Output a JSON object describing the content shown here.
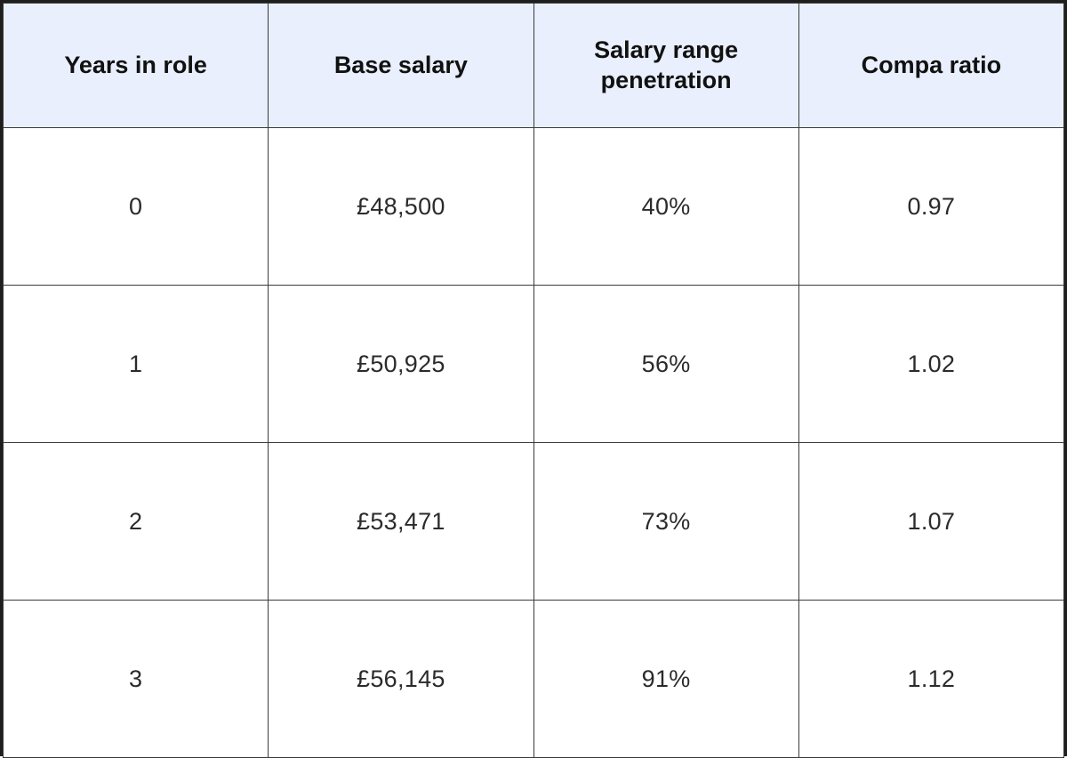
{
  "colors": {
    "header_bg": "#e9effc",
    "outer_border": "#1e1e1e",
    "inner_border": "#3a3a3a",
    "header_text": "#111111",
    "cell_text": "#2b2b2b",
    "row_bg": "#ffffff"
  },
  "table": {
    "columns": [
      "Years in role",
      "Base salary",
      "Salary range penetration",
      "Compa ratio"
    ],
    "rows": [
      [
        "0",
        "£48,500",
        "40%",
        "0.97"
      ],
      [
        "1",
        "£50,925",
        "56%",
        "1.02"
      ],
      [
        "2",
        "£53,471",
        "73%",
        "1.07"
      ],
      [
        "3",
        "£56,145",
        "91%",
        "1.12"
      ]
    ]
  },
  "chart_data": {
    "type": "table",
    "title": "",
    "columns": [
      "Years in role",
      "Base salary",
      "Salary range penetration",
      "Compa ratio"
    ],
    "rows": [
      [
        "0",
        "£48,500",
        "40%",
        "0.97"
      ],
      [
        "1",
        "£50,925",
        "56%",
        "1.02"
      ],
      [
        "2",
        "£53,471",
        "73%",
        "1.07"
      ],
      [
        "3",
        "£56,145",
        "91%",
        "1.12"
      ]
    ],
    "notes": {
      "years_in_role": [
        0,
        1,
        2,
        3
      ],
      "base_salary_gbp": [
        48500,
        50925,
        53471,
        56145
      ],
      "salary_range_penetration_pct": [
        40,
        56,
        73,
        91
      ],
      "compa_ratio": [
        0.97,
        1.02,
        1.07,
        1.12
      ]
    }
  }
}
